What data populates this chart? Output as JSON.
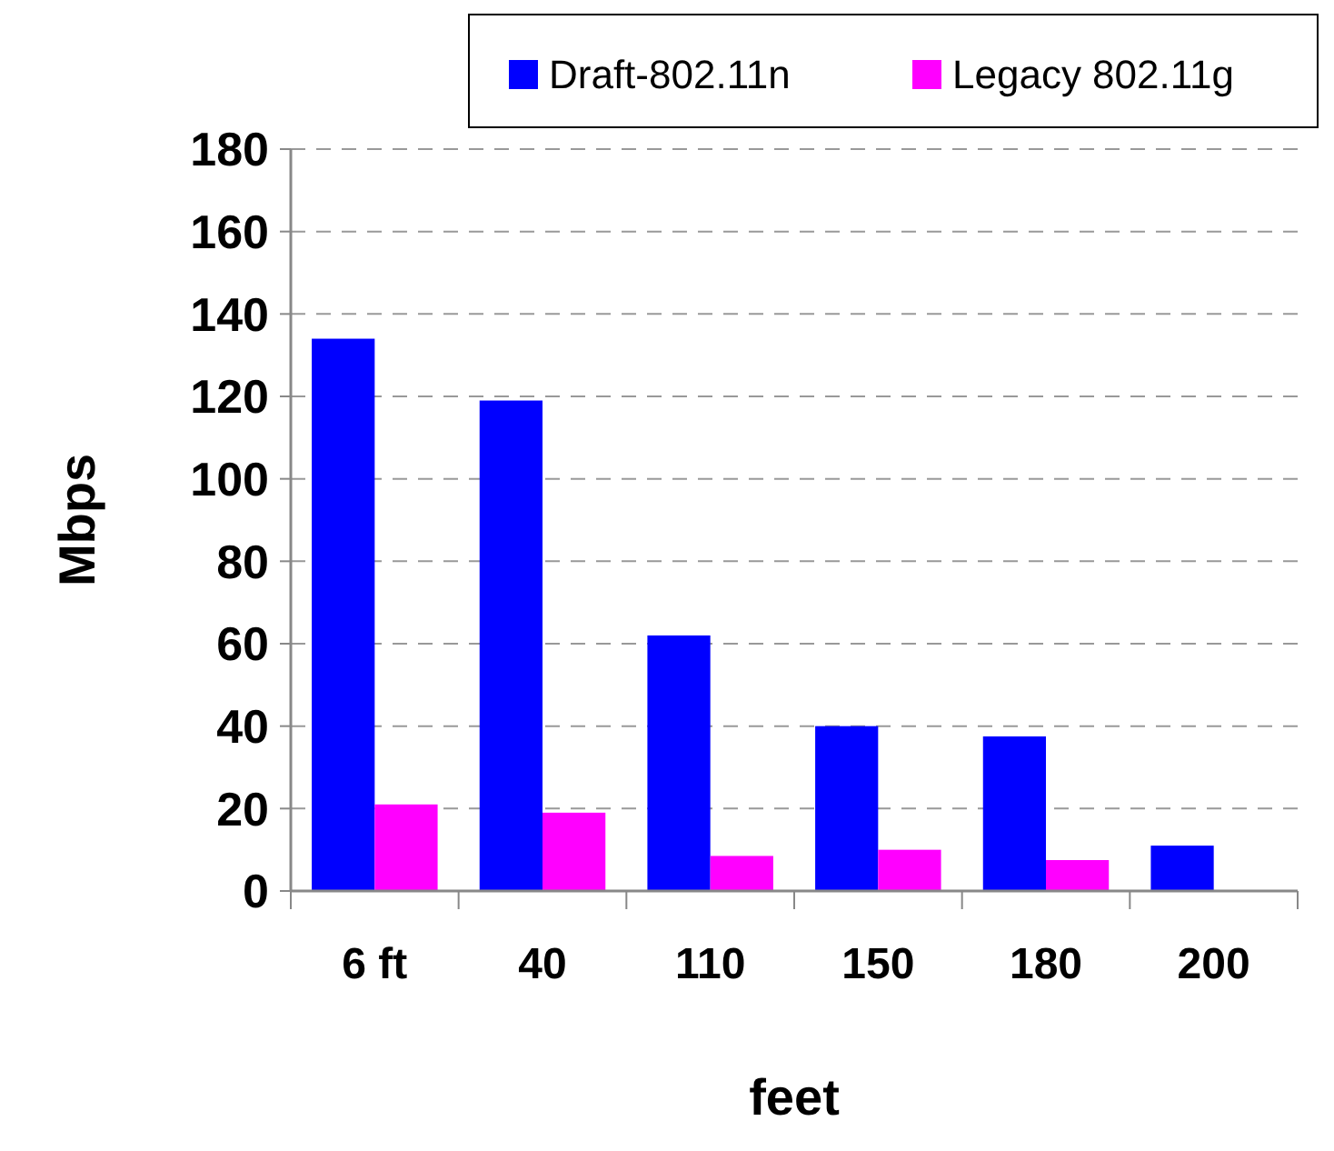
{
  "chart_data": {
    "type": "bar",
    "xlabel": "feet",
    "ylabel": "Mbps",
    "categories": [
      "6 ft",
      "40",
      "110",
      "150",
      "180",
      "200"
    ],
    "series": [
      {
        "name": "Draft-802.11n",
        "color": "#0000ff",
        "values": [
          134,
          119,
          62,
          40,
          37.5,
          11
        ]
      },
      {
        "name": "Legacy 802.11g",
        "color": "#ff00ff",
        "values": [
          21,
          19,
          8.5,
          10,
          7.5,
          null
        ]
      }
    ],
    "ylim": [
      0,
      180
    ],
    "yticks": [
      0,
      20,
      40,
      60,
      80,
      100,
      120,
      140,
      160,
      180
    ],
    "grid": "y",
    "legend": "top right"
  }
}
